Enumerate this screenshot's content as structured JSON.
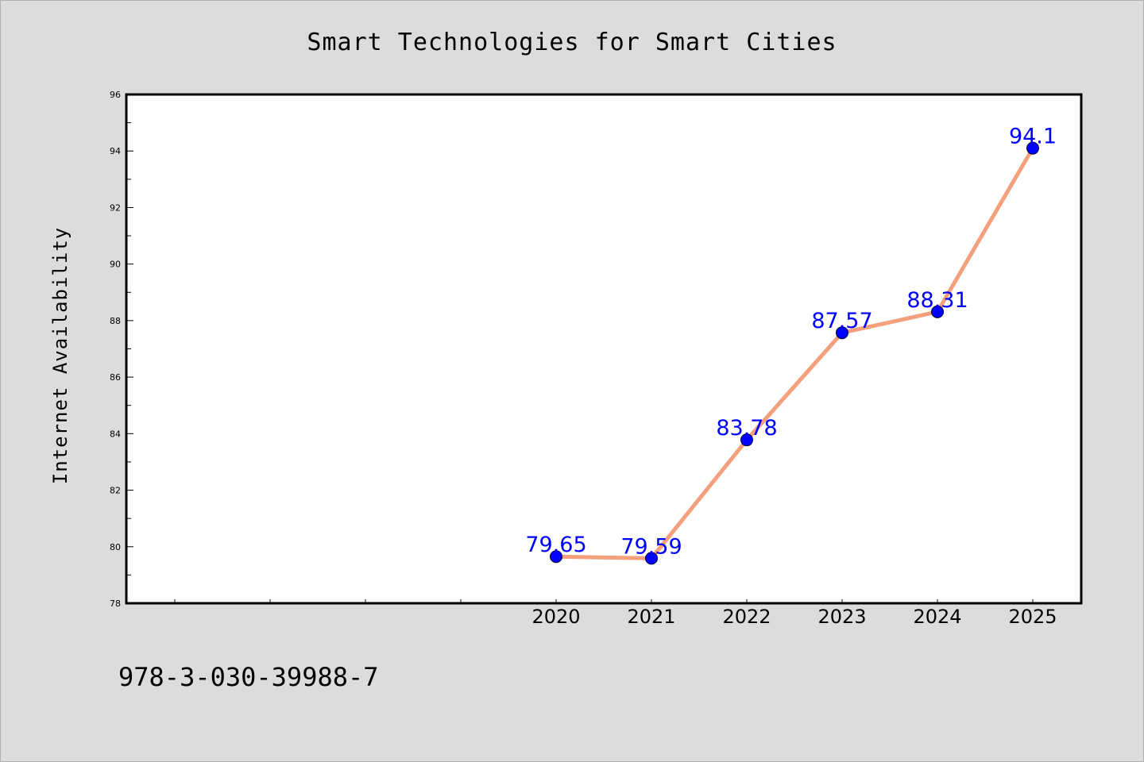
{
  "chart_data": {
    "type": "line",
    "title": "Smart Technologies for Smart Cities",
    "xlabel": "",
    "ylabel": "Internet Availability",
    "categories": [
      "2020",
      "2021",
      "2022",
      "2023",
      "2024",
      "2025"
    ],
    "values": [
      79.65,
      79.59,
      83.78,
      87.57,
      88.31,
      94.1
    ],
    "data_labels": [
      "79.65",
      "79.59",
      "83.78",
      "87.57",
      "88.31",
      "94.1"
    ],
    "ylim": [
      78,
      96
    ],
    "y_ticks": [
      "78",
      "80",
      "82",
      "84",
      "86",
      "88",
      "90",
      "92",
      "94",
      "96"
    ],
    "x_slots": 10,
    "grid": false,
    "line_color": "#f4a07c",
    "marker_color": "#0000ff",
    "label_color": "#0000ff",
    "background_color": "#dcdcdc"
  },
  "footer": {
    "code": "978-3-030-39988-7"
  }
}
